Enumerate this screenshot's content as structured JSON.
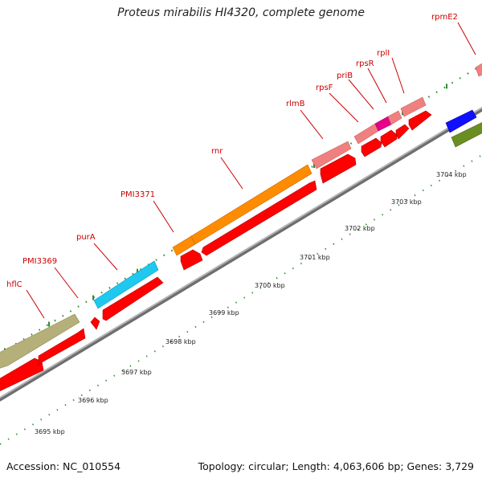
{
  "title": "Proteus mirabilis HI4320, complete genome",
  "footer": {
    "accession": "Accession: NC_010554",
    "summary": "Topology: circular; Length: 4,063,606 bp; Genes: 3,729"
  },
  "colors": {
    "backbone": "#9a9a9a",
    "tick": "#2e8b2e",
    "label": "#cc0000",
    "gene_cds": "#ff0000",
    "feature_orange": "#ff8c00",
    "feature_cyan": "#1ec8ef",
    "feature_olive": "#b5b07a",
    "feature_pink": "#f08080",
    "feature_magenta": "#e6008a",
    "feature_blue": "#1010ff",
    "feature_green": "#6b8e23"
  },
  "gene_labels": [
    {
      "id": "hflC",
      "text": "hflC"
    },
    {
      "id": "PMI3369",
      "text": "PMI3369"
    },
    {
      "id": "purA",
      "text": "purA"
    },
    {
      "id": "PMI3371",
      "text": "PMI3371"
    },
    {
      "id": "rnr",
      "text": "rnr"
    },
    {
      "id": "rlmB",
      "text": "rlmB"
    },
    {
      "id": "rpsF",
      "text": "rpsF"
    },
    {
      "id": "priB",
      "text": "priB"
    },
    {
      "id": "rpsR",
      "text": "rpsR"
    },
    {
      "id": "rplI",
      "text": "rplI"
    },
    {
      "id": "rpmE2",
      "text": "rpmE2"
    }
  ],
  "scale_labels": [
    "3695 kbp",
    "3696 kbp",
    "3697 kbp",
    "3698 kbp",
    "3699 kbp",
    "3700 kbp",
    "3701 kbp",
    "3702 kbp",
    "3703 kbp",
    "3704 kbp"
  ]
}
